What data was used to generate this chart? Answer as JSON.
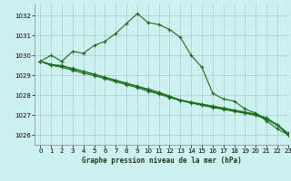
{
  "title": "Graphe pression niveau de la mer (hPa)",
  "bg_color": "#cdf0f0",
  "grid_color": "#b0c8c8",
  "line_color": "#1a6e1a",
  "xlim": [
    -0.5,
    23
  ],
  "ylim": [
    1025.5,
    1032.6
  ],
  "yticks": [
    1026,
    1027,
    1028,
    1029,
    1030,
    1031,
    1032
  ],
  "xticks": [
    0,
    1,
    2,
    3,
    4,
    5,
    6,
    7,
    8,
    9,
    10,
    11,
    12,
    13,
    14,
    15,
    16,
    17,
    18,
    19,
    20,
    21,
    22,
    23
  ],
  "series": [
    [
      1029.7,
      1030.0,
      1029.7,
      1030.2,
      1030.1,
      1030.5,
      1030.7,
      1031.1,
      1031.6,
      1032.1,
      1031.65,
      1031.55,
      1031.3,
      1030.9,
      1030.0,
      1029.4,
      1028.1,
      1027.8,
      1027.7,
      1027.3,
      1027.1,
      1026.7,
      1026.3,
      1026.0
    ],
    [
      1029.7,
      1029.5,
      1029.5,
      1029.3,
      1029.2,
      1029.05,
      1028.9,
      1028.75,
      1028.6,
      1028.45,
      1028.3,
      1028.15,
      1027.95,
      1027.75,
      1027.65,
      1027.55,
      1027.45,
      1027.35,
      1027.25,
      1027.15,
      1027.05,
      1026.85,
      1026.5,
      1026.0
    ],
    [
      1029.7,
      1029.5,
      1029.4,
      1029.25,
      1029.1,
      1028.98,
      1028.82,
      1028.67,
      1028.52,
      1028.37,
      1028.2,
      1028.05,
      1027.88,
      1027.72,
      1027.6,
      1027.48,
      1027.38,
      1027.28,
      1027.18,
      1027.08,
      1026.98,
      1026.78,
      1026.48,
      1026.05
    ],
    [
      1029.7,
      1029.55,
      1029.45,
      1029.35,
      1029.18,
      1029.05,
      1028.88,
      1028.73,
      1028.58,
      1028.43,
      1028.25,
      1028.08,
      1027.92,
      1027.75,
      1027.63,
      1027.52,
      1027.42,
      1027.32,
      1027.22,
      1027.12,
      1027.02,
      1026.82,
      1026.52,
      1026.08
    ]
  ]
}
